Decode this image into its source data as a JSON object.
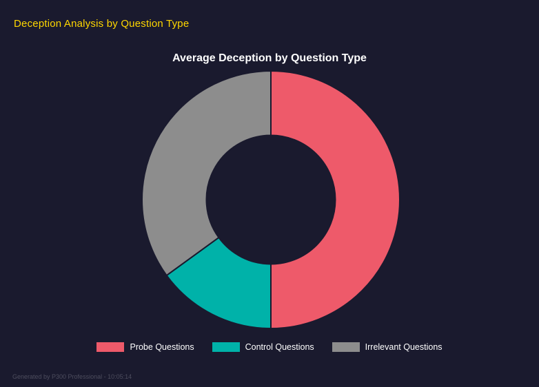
{
  "page": {
    "header": "Deception Analysis by Question Type",
    "header_color": "#ffd700",
    "background": "#1a1a2e",
    "footer": "Generated by P300 Professional - 10:05:14"
  },
  "chart_data": {
    "type": "pie",
    "subtype": "doughnut",
    "title": "Average Deception by Question Type",
    "categories": [
      "Probe Questions",
      "Control Questions",
      "Irrelevant Questions"
    ],
    "values": [
      50,
      15,
      35
    ],
    "colors": [
      "#ee5a6a",
      "#00b2a9",
      "#8d8d8d"
    ],
    "donut_cutout": 0.5,
    "start_angle_deg": 0,
    "direction": "clockwise",
    "legend_position": "bottom",
    "grid": false
  }
}
